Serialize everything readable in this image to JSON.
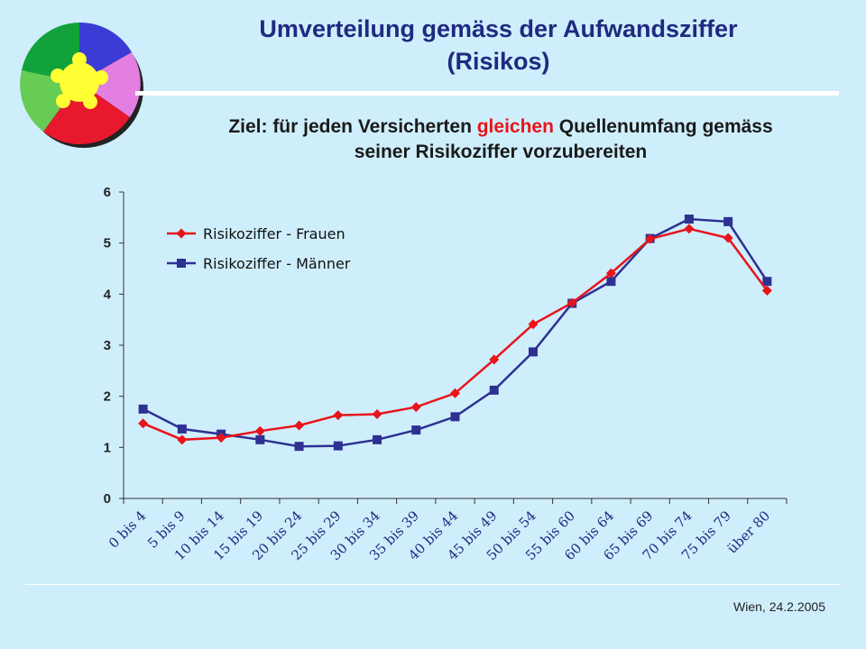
{
  "header": {
    "title_line1": "Umverteilung gemäss der Aufwandsziffer",
    "title_line2": "(Risikos)",
    "subtitle_pre": "Ziel: für jeden Versicherten ",
    "subtitle_highlight": "gleichen",
    "subtitle_post": " Quellenumfang gemäss",
    "subtitle_line2": "seiner Risikoziffer vorzubereiten"
  },
  "footer": {
    "date": "Wien, 24.2.2005"
  },
  "colors": {
    "background": "#cfeefc",
    "title": "#1f2a80",
    "highlight": "#e8141a",
    "series_frauen": "#e8141a",
    "series_maenner": "#2e3192"
  },
  "chart_data": {
    "type": "line",
    "categories": [
      "0 bis 4",
      "5 bis 9",
      "10 bis 14",
      "15 bis 19",
      "20 bis 24",
      "25 bis 29",
      "30 bis 34",
      "35 bis 39",
      "40 bis 44",
      "45 bis 49",
      "50 bis 54",
      "55 bis 60",
      "60 bis 64",
      "65 bis 69",
      "70 bis 74",
      "75 bis 79",
      "über 80"
    ],
    "series": [
      {
        "name": "Risikoziffer - Frauen",
        "marker": "diamond",
        "values": [
          1.47,
          1.15,
          1.19,
          1.32,
          1.43,
          1.63,
          1.65,
          1.79,
          2.06,
          2.72,
          3.41,
          3.83,
          4.41,
          5.08,
          5.28,
          5.1,
          4.07
        ]
      },
      {
        "name": "Risikoziffer - Männer",
        "marker": "square",
        "values": [
          1.75,
          1.36,
          1.26,
          1.15,
          1.02,
          1.03,
          1.15,
          1.34,
          1.6,
          2.12,
          2.87,
          3.82,
          4.25,
          5.09,
          5.47,
          5.42,
          4.25
        ]
      }
    ],
    "yticks": [
      "0",
      "1",
      "2",
      "3",
      "4",
      "5",
      "6"
    ],
    "ylim": [
      0,
      6
    ],
    "grid": false,
    "legend_position": "top-left"
  }
}
